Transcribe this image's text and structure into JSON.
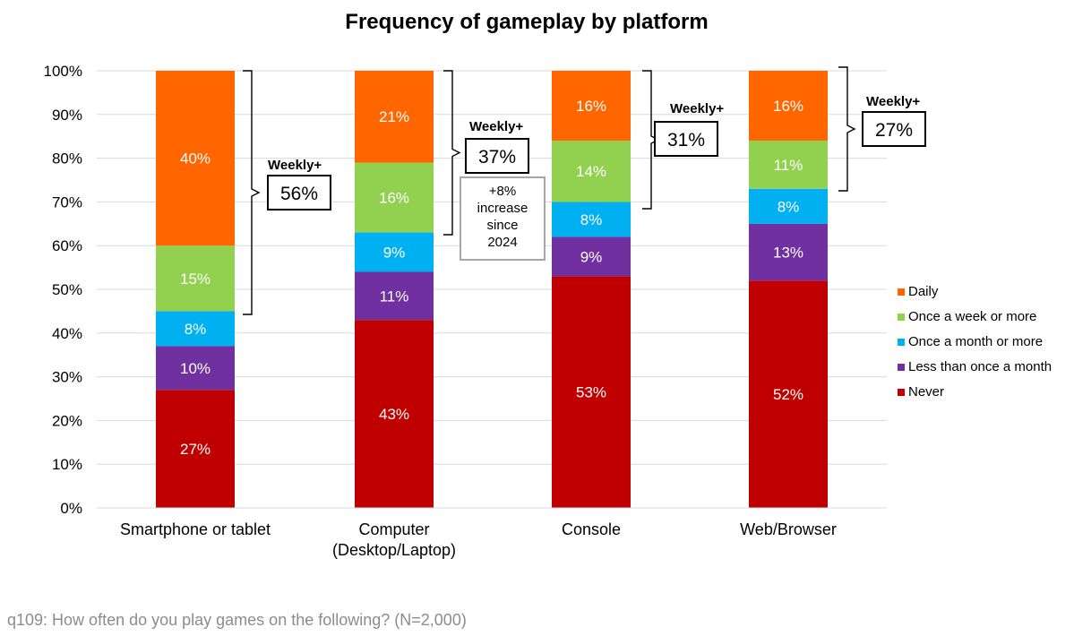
{
  "chart_data": {
    "type": "bar",
    "stacked": true,
    "title": "Frequency of gameplay by platform",
    "categories": [
      "Smartphone or tablet",
      "Computer\n(Desktop/Laptop)",
      "Console",
      "Web/Browser"
    ],
    "y_ticks": [
      "0%",
      "10%",
      "20%",
      "30%",
      "40%",
      "50%",
      "60%",
      "70%",
      "80%",
      "90%",
      "100%"
    ],
    "ylim": [
      0,
      100
    ],
    "series": [
      {
        "name": "Never",
        "color": "#c00000",
        "values": [
          27,
          43,
          53,
          52
        ],
        "labels": [
          "27%",
          "43%",
          "53%",
          "52%"
        ]
      },
      {
        "name": "Less than once a month",
        "color": "#7030a0",
        "values": [
          10,
          11,
          9,
          13
        ],
        "labels": [
          "10%",
          "11%",
          "9%",
          "13%"
        ]
      },
      {
        "name": "Once a month or more",
        "color": "#00b0f0",
        "values": [
          8,
          9,
          8,
          8
        ],
        "labels": [
          "8%",
          "9%",
          "8%",
          "8%"
        ]
      },
      {
        "name": "Once a week or more",
        "color": "#92d050",
        "values": [
          15,
          16,
          14,
          11
        ],
        "labels": [
          "15%",
          "16%",
          "14%",
          "11%"
        ]
      },
      {
        "name": "Daily",
        "color": "#ff6600",
        "values": [
          40,
          21,
          16,
          16
        ],
        "labels": [
          "40%",
          "21%",
          "16%",
          "16%"
        ]
      }
    ],
    "legend": {
      "position": "right",
      "order": [
        "Daily",
        "Once a week or more",
        "Once a month or more",
        "Less than once a month",
        "Never"
      ]
    },
    "annotations": {
      "weekly_label": "Weekly+",
      "weekly_values": [
        "56%",
        "37%",
        "31%",
        "27%"
      ],
      "computer_note_lines": [
        "+8%",
        "increase",
        "since",
        "2024"
      ]
    }
  },
  "footnote": "q109: How often do you play games on the following? (N=2,000)"
}
